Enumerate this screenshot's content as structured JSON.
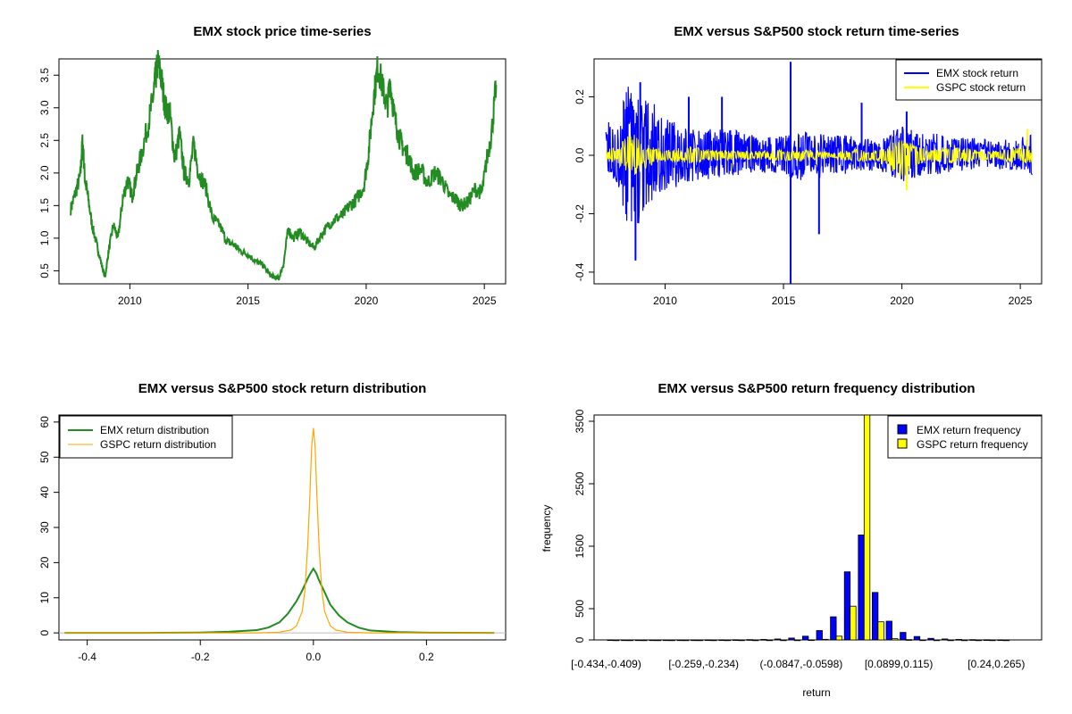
{
  "chart_data": [
    {
      "type": "line",
      "title": "EMX stock price time-series",
      "x_ticks": [
        "2010",
        "2015",
        "2020",
        "2025"
      ],
      "y_ticks": [
        "0.5",
        "1.0",
        "1.5",
        "2.0",
        "2.5",
        "3.0",
        "3.5"
      ],
      "xlim": [
        2007.0,
        2025.9
      ],
      "ylim": [
        0.3,
        3.75
      ],
      "colors": {
        "line": "#228B22"
      },
      "series": [
        {
          "x": [
            2007.5,
            2007.7,
            2007.9,
            2008.0,
            2008.1,
            2008.2,
            2008.4,
            2008.6,
            2008.8,
            2008.95,
            2009.1,
            2009.3,
            2009.5,
            2009.7,
            2009.9,
            2010.1,
            2010.3,
            2010.5,
            2010.8,
            2011.0,
            2011.1,
            2011.2,
            2011.35,
            2011.5,
            2011.7,
            2011.9,
            2012.1,
            2012.3,
            2012.5,
            2012.7,
            2012.9,
            2013.2,
            2013.5,
            2013.8,
            2014.1,
            2014.4,
            2014.7,
            2015.0,
            2015.3,
            2015.6,
            2015.9,
            2016.1,
            2016.3,
            2016.5,
            2016.7,
            2016.9,
            2017.2,
            2017.5,
            2017.8,
            2018.1,
            2018.4,
            2018.7,
            2019.0,
            2019.3,
            2019.6,
            2019.9,
            2020.1,
            2020.3,
            2020.5,
            2020.7,
            2020.9,
            2021.0,
            2021.2,
            2021.4,
            2021.6,
            2021.8,
            2022.0,
            2022.3,
            2022.6,
            2022.9,
            2023.2,
            2023.5,
            2023.8,
            2024.0,
            2024.3,
            2024.6,
            2024.9,
            2025.1,
            2025.3,
            2025.5
          ],
          "y": [
            1.45,
            1.7,
            1.95,
            2.5,
            1.9,
            1.7,
            1.2,
            0.9,
            0.6,
            0.4,
            0.8,
            1.2,
            1.0,
            1.6,
            1.9,
            1.65,
            2.0,
            2.3,
            2.8,
            3.2,
            3.5,
            3.7,
            3.4,
            3.0,
            2.9,
            2.2,
            2.6,
            2.0,
            1.9,
            2.45,
            2.0,
            1.8,
            1.3,
            1.2,
            0.95,
            0.9,
            0.8,
            0.75,
            0.65,
            0.6,
            0.45,
            0.4,
            0.38,
            0.6,
            1.15,
            1.0,
            1.1,
            0.95,
            0.85,
            1.05,
            1.2,
            1.3,
            1.35,
            1.5,
            1.6,
            1.8,
            2.3,
            3.1,
            3.65,
            3.3,
            3.0,
            3.45,
            2.85,
            2.55,
            2.35,
            2.25,
            2.0,
            2.05,
            1.85,
            2.0,
            1.9,
            1.65,
            1.6,
            1.5,
            1.55,
            1.75,
            1.7,
            2.2,
            2.6,
            3.35
          ]
        }
      ]
    },
    {
      "type": "line",
      "title": "EMX versus S&P500 stock return time-series",
      "x_ticks": [
        "2010",
        "2015",
        "2020",
        "2025"
      ],
      "y_ticks": [
        "-0.4",
        "-0.2",
        "0.0",
        "0.2"
      ],
      "xlim": [
        2007.0,
        2025.9
      ],
      "ylim": [
        -0.44,
        0.33
      ],
      "legend": {
        "position": "top-right",
        "entries": [
          "EMX stock return",
          "GSPC stock return"
        ]
      },
      "colors": {
        "emx": "#0000FF",
        "gspc": "#FFFF00"
      },
      "series": [
        {
          "name": "EMX stock return",
          "envelope_x": [
            2007.5,
            2008.0,
            2008.5,
            2009.0,
            2009.5,
            2010.0,
            2011.0,
            2012.0,
            2013.0,
            2014.0,
            2015.0,
            2016.0,
            2017.0,
            2018.0,
            2019.0,
            2020.0,
            2021.0,
            2022.0,
            2023.0,
            2024.0,
            2025.0,
            2025.5
          ],
          "envelope_hi": [
            0.12,
            0.14,
            0.25,
            0.2,
            0.18,
            0.13,
            0.09,
            0.09,
            0.09,
            0.06,
            0.07,
            0.08,
            0.07,
            0.07,
            0.06,
            0.1,
            0.08,
            0.07,
            0.06,
            0.05,
            0.06,
            0.08
          ],
          "envelope_lo": [
            -0.08,
            -0.1,
            -0.3,
            -0.22,
            -0.15,
            -0.12,
            -0.1,
            -0.08,
            -0.07,
            -0.06,
            -0.07,
            -0.1,
            -0.07,
            -0.06,
            -0.05,
            -0.09,
            -0.07,
            -0.06,
            -0.05,
            -0.05,
            -0.05,
            -0.07
          ],
          "spikes": [
            [
              2008.75,
              -0.36
            ],
            [
              2008.95,
              0.25
            ],
            [
              2015.3,
              0.32
            ],
            [
              2015.3,
              -0.44
            ],
            [
              2016.5,
              -0.27
            ],
            [
              2011.0,
              0.2
            ],
            [
              2012.4,
              0.2
            ],
            [
              2018.3,
              0.18
            ],
            [
              2020.2,
              0.15
            ]
          ]
        },
        {
          "name": "GSPC stock return",
          "envelope_x": [
            2007.5,
            2008.0,
            2008.5,
            2009.0,
            2009.5,
            2010.0,
            2011.0,
            2012.0,
            2013.0,
            2014.0,
            2015.0,
            2016.0,
            2017.0,
            2018.0,
            2019.0,
            2020.0,
            2021.0,
            2022.0,
            2023.0,
            2024.0,
            2025.0,
            2025.5
          ],
          "envelope_hi": [
            0.02,
            0.03,
            0.08,
            0.06,
            0.03,
            0.02,
            0.03,
            0.02,
            0.015,
            0.015,
            0.02,
            0.02,
            0.01,
            0.02,
            0.02,
            0.06,
            0.02,
            0.03,
            0.02,
            0.015,
            0.03,
            0.03
          ],
          "envelope_lo": [
            -0.02,
            -0.03,
            -0.08,
            -0.06,
            -0.03,
            -0.02,
            -0.03,
            -0.02,
            -0.015,
            -0.015,
            -0.02,
            -0.02,
            -0.01,
            -0.02,
            -0.02,
            -0.08,
            -0.02,
            -0.03,
            -0.02,
            -0.015,
            -0.03,
            -0.03
          ],
          "spikes": [
            [
              2020.2,
              -0.12
            ],
            [
              2025.3,
              0.09
            ]
          ]
        }
      ]
    },
    {
      "type": "line",
      "title": "EMX versus S&P500 stock return distribution",
      "x_ticks": [
        "-0.4",
        "-0.2",
        "0.0",
        "0.2"
      ],
      "y_ticks": [
        "0",
        "10",
        "20",
        "30",
        "40",
        "50",
        "60"
      ],
      "xlim": [
        -0.45,
        0.34
      ],
      "ylim": [
        -2,
        62
      ],
      "legend": {
        "position": "top-left",
        "entries": [
          "EMX return distribution",
          "GSPC return distribution"
        ]
      },
      "colors": {
        "emx": "#228B22",
        "gspc": "#FFA500"
      },
      "series": [
        {
          "name": "EMX return distribution",
          "x": [
            -0.44,
            -0.3,
            -0.2,
            -0.15,
            -0.1,
            -0.08,
            -0.06,
            -0.045,
            -0.03,
            -0.02,
            -0.01,
            -0.005,
            0.0,
            0.005,
            0.01,
            0.02,
            0.03,
            0.045,
            0.06,
            0.08,
            0.1,
            0.15,
            0.2,
            0.32
          ],
          "y": [
            0,
            0,
            0.1,
            0.3,
            0.8,
            1.5,
            3.0,
            5.5,
            9.0,
            12.0,
            15.5,
            17.0,
            18.3,
            17.0,
            15.0,
            11.5,
            8.0,
            5.0,
            3.0,
            1.5,
            0.7,
            0.2,
            0.05,
            0
          ]
        },
        {
          "name": "GSPC return distribution",
          "x": [
            -0.44,
            -0.1,
            -0.06,
            -0.04,
            -0.03,
            -0.02,
            -0.015,
            -0.01,
            -0.006,
            -0.003,
            0.0,
            0.003,
            0.006,
            0.01,
            0.015,
            0.02,
            0.03,
            0.04,
            0.06,
            0.1,
            0.32
          ],
          "y": [
            0,
            0,
            0.2,
            0.8,
            2.0,
            6.0,
            12.0,
            25.0,
            40.0,
            53.0,
            58.3,
            53.0,
            40.0,
            25.0,
            12.0,
            6.0,
            2.0,
            0.8,
            0.2,
            0,
            0
          ]
        }
      ]
    },
    {
      "type": "bar",
      "title": "EMX versus S&P500 return frequency distribution",
      "xlabel": "return",
      "ylabel": "frequency",
      "x_tick_labels": [
        "[-0.434,-0.409)",
        "[-0.259,-0.234)",
        "(-0.0847,-0.0598)",
        "[0.0899,0.115)",
        "[0.24,0.265)"
      ],
      "y_ticks": [
        "0",
        "500",
        "1500",
        "2500",
        "3500"
      ],
      "ylim": [
        0,
        3600
      ],
      "legend": {
        "position": "top-right",
        "entries": [
          "EMX return frequency",
          "GSPC return frequency"
        ]
      },
      "colors": {
        "emx": "#0000FF",
        "gspc": "#FFFF00"
      },
      "bins": 29,
      "series": [
        {
          "name": "EMX return frequency",
          "values": [
            2,
            1,
            1,
            1,
            1,
            1,
            1,
            2,
            2,
            3,
            5,
            8,
            15,
            30,
            60,
            150,
            370,
            1090,
            1680,
            760,
            300,
            120,
            55,
            25,
            15,
            8,
            5,
            3,
            2
          ]
        },
        {
          "name": "GSPC return frequency",
          "values": [
            0,
            0,
            0,
            0,
            0,
            0,
            0,
            0,
            0,
            0,
            0,
            0,
            0,
            0,
            2,
            10,
            60,
            540,
            3600,
            290,
            20,
            5,
            1,
            0,
            0,
            0,
            0,
            0,
            0
          ]
        }
      ]
    }
  ]
}
